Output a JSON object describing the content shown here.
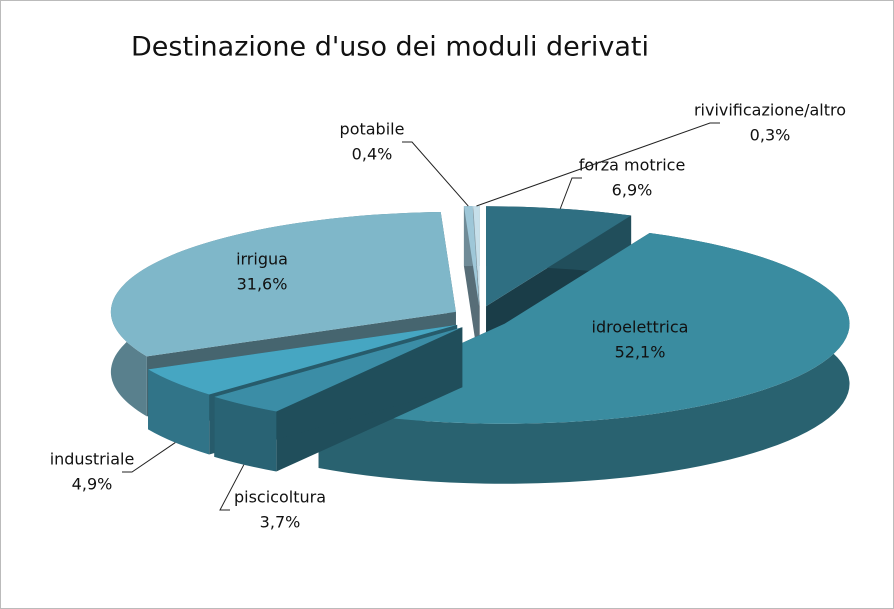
{
  "chart_data": {
    "type": "pie3d",
    "title": "Destinazione d'uso dei moduli derivati",
    "categories": [
      "forza motrice",
      "idroelettrica",
      "piscicoltura",
      "industriale",
      "irrigua",
      "potabile",
      "rivivificazione/altro"
    ],
    "values": [
      6.9,
      52.1,
      3.7,
      4.9,
      31.6,
      0.4,
      0.3
    ],
    "value_labels": [
      "6,9%",
      "52,1%",
      "3,7%",
      "4,9%",
      "31,6%",
      "0,4%",
      "0,3%"
    ],
    "colors": [
      "#2f6f82",
      "#3a8ca0",
      "#3b8da6",
      "#46a6c2",
      "#7fb7c9",
      "#9ec7d8",
      "#c6dfea"
    ]
  }
}
